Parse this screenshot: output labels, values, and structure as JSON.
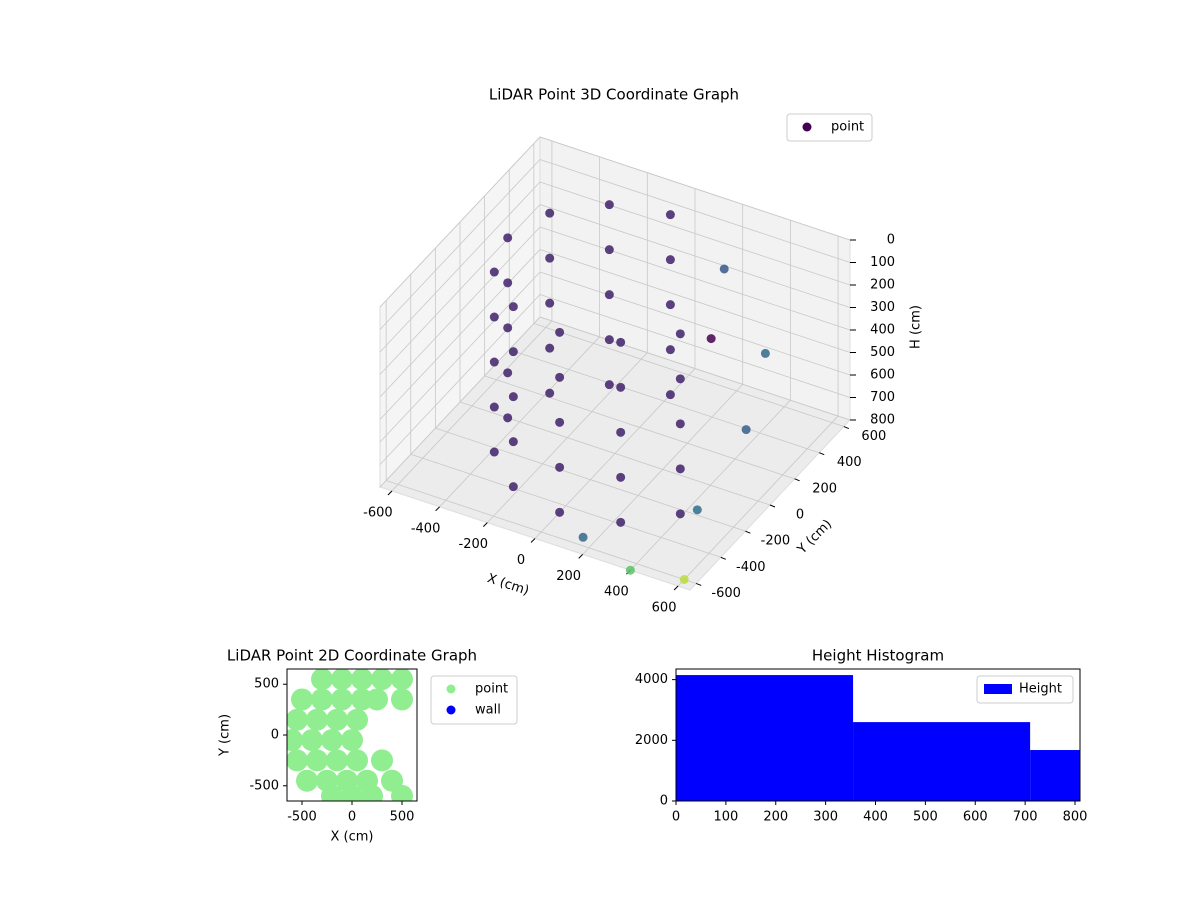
{
  "chart_data": [
    {
      "type": "scatter3d",
      "title": "LiDAR Point 3D Coordinate Graph",
      "xlabel": "X (cm)",
      "ylabel": "Y (cm)",
      "zlabel": "H (cm)",
      "xlim": [
        -650,
        650
      ],
      "ylim": [
        -650,
        650
      ],
      "zlim": [
        0,
        800
      ],
      "zinvert": true,
      "xticks": [
        -600,
        -400,
        -200,
        0,
        200,
        400,
        600
      ],
      "yticks": [
        -600,
        -400,
        -200,
        0,
        200,
        400,
        600
      ],
      "zticks": [
        0,
        100,
        200,
        300,
        400,
        500,
        600,
        700,
        800
      ],
      "grid": true,
      "legend": "upper right",
      "series": [
        {
          "name": "point",
          "color": "#440154",
          "x": [
            0,
            -225,
            -390,
            -450,
            -390,
            -225,
            0,
            225,
            390,
            0,
            -225,
            -390,
            -450,
            -390,
            -225,
            0,
            225,
            390,
            0,
            -225,
            -390,
            -450,
            -390,
            -225,
            0,
            225,
            390,
            0,
            -225,
            -390,
            -450,
            -390,
            -225,
            0,
            225,
            390,
            0,
            -225,
            -390,
            -450,
            -390,
            -225,
            0,
            225,
            390,
            300,
            450,
            550,
            200,
            500,
            150,
            600,
            400
          ],
          "y": [
            450,
            390,
            225,
            0,
            -225,
            -390,
            -450,
            -390,
            -225,
            450,
            390,
            225,
            0,
            -225,
            -390,
            -450,
            -390,
            -225,
            450,
            390,
            225,
            0,
            -225,
            -390,
            -450,
            -390,
            -225,
            450,
            390,
            225,
            0,
            -225,
            -390,
            -450,
            -390,
            -225,
            450,
            390,
            225,
            0,
            -225,
            -390,
            -450,
            -390,
            -225,
            200,
            350,
            0,
            500,
            -300,
            -550,
            -600,
            -650
          ],
          "z": [
            0,
            0,
            0,
            0,
            0,
            0,
            0,
            0,
            0,
            200,
            200,
            200,
            200,
            200,
            200,
            200,
            200,
            200,
            400,
            400,
            400,
            400,
            400,
            400,
            400,
            400,
            400,
            600,
            600,
            600,
            600,
            600,
            600,
            600,
            600,
            600,
            800,
            800,
            800,
            800,
            800,
            800,
            800,
            800,
            800,
            300,
            400,
            500,
            200,
            700,
            800,
            800,
            800
          ]
        }
      ]
    },
    {
      "type": "scatter",
      "title": "LiDAR Point 2D Coordinate Graph",
      "xlabel": "X (cm)",
      "ylabel": "Y (cm)",
      "xlim": [
        -650,
        650
      ],
      "ylim": [
        -650,
        650
      ],
      "xticks": [
        -500,
        0,
        500
      ],
      "yticks": [
        -500,
        0,
        500
      ],
      "legend": "outside right",
      "series": [
        {
          "name": "point",
          "color": "#90ee90",
          "x": [
            -300,
            -100,
            100,
            300,
            500,
            -500,
            -300,
            -100,
            100,
            250,
            500,
            -550,
            -350,
            -150,
            50,
            -600,
            -400,
            -200,
            0,
            -550,
            -350,
            -150,
            50,
            300,
            -450,
            -250,
            -50,
            150,
            400,
            -200,
            0,
            200,
            500
          ],
          "y": [
            550,
            550,
            550,
            550,
            550,
            350,
            350,
            350,
            350,
            350,
            350,
            150,
            150,
            150,
            150,
            -50,
            -50,
            -50,
            -50,
            -250,
            -250,
            -250,
            -250,
            -250,
            -450,
            -450,
            -450,
            -450,
            -450,
            -600,
            -600,
            -600,
            -600
          ]
        },
        {
          "name": "wall",
          "color": "#0000ff",
          "x": [],
          "y": []
        }
      ]
    },
    {
      "type": "histogram",
      "title": "Height Histogram",
      "bins": [
        0,
        355,
        710,
        810
      ],
      "xlim": [
        0,
        810
      ],
      "ylim": [
        0,
        4350
      ],
      "xticks": [
        0,
        100,
        200,
        300,
        400,
        500,
        600,
        700,
        800
      ],
      "yticks": [
        0,
        2000,
        4000
      ],
      "legend": "upper right",
      "series": [
        {
          "name": "Height",
          "color": "#0000ff",
          "values": [
            4150,
            2600,
            1680
          ]
        }
      ]
    }
  ]
}
